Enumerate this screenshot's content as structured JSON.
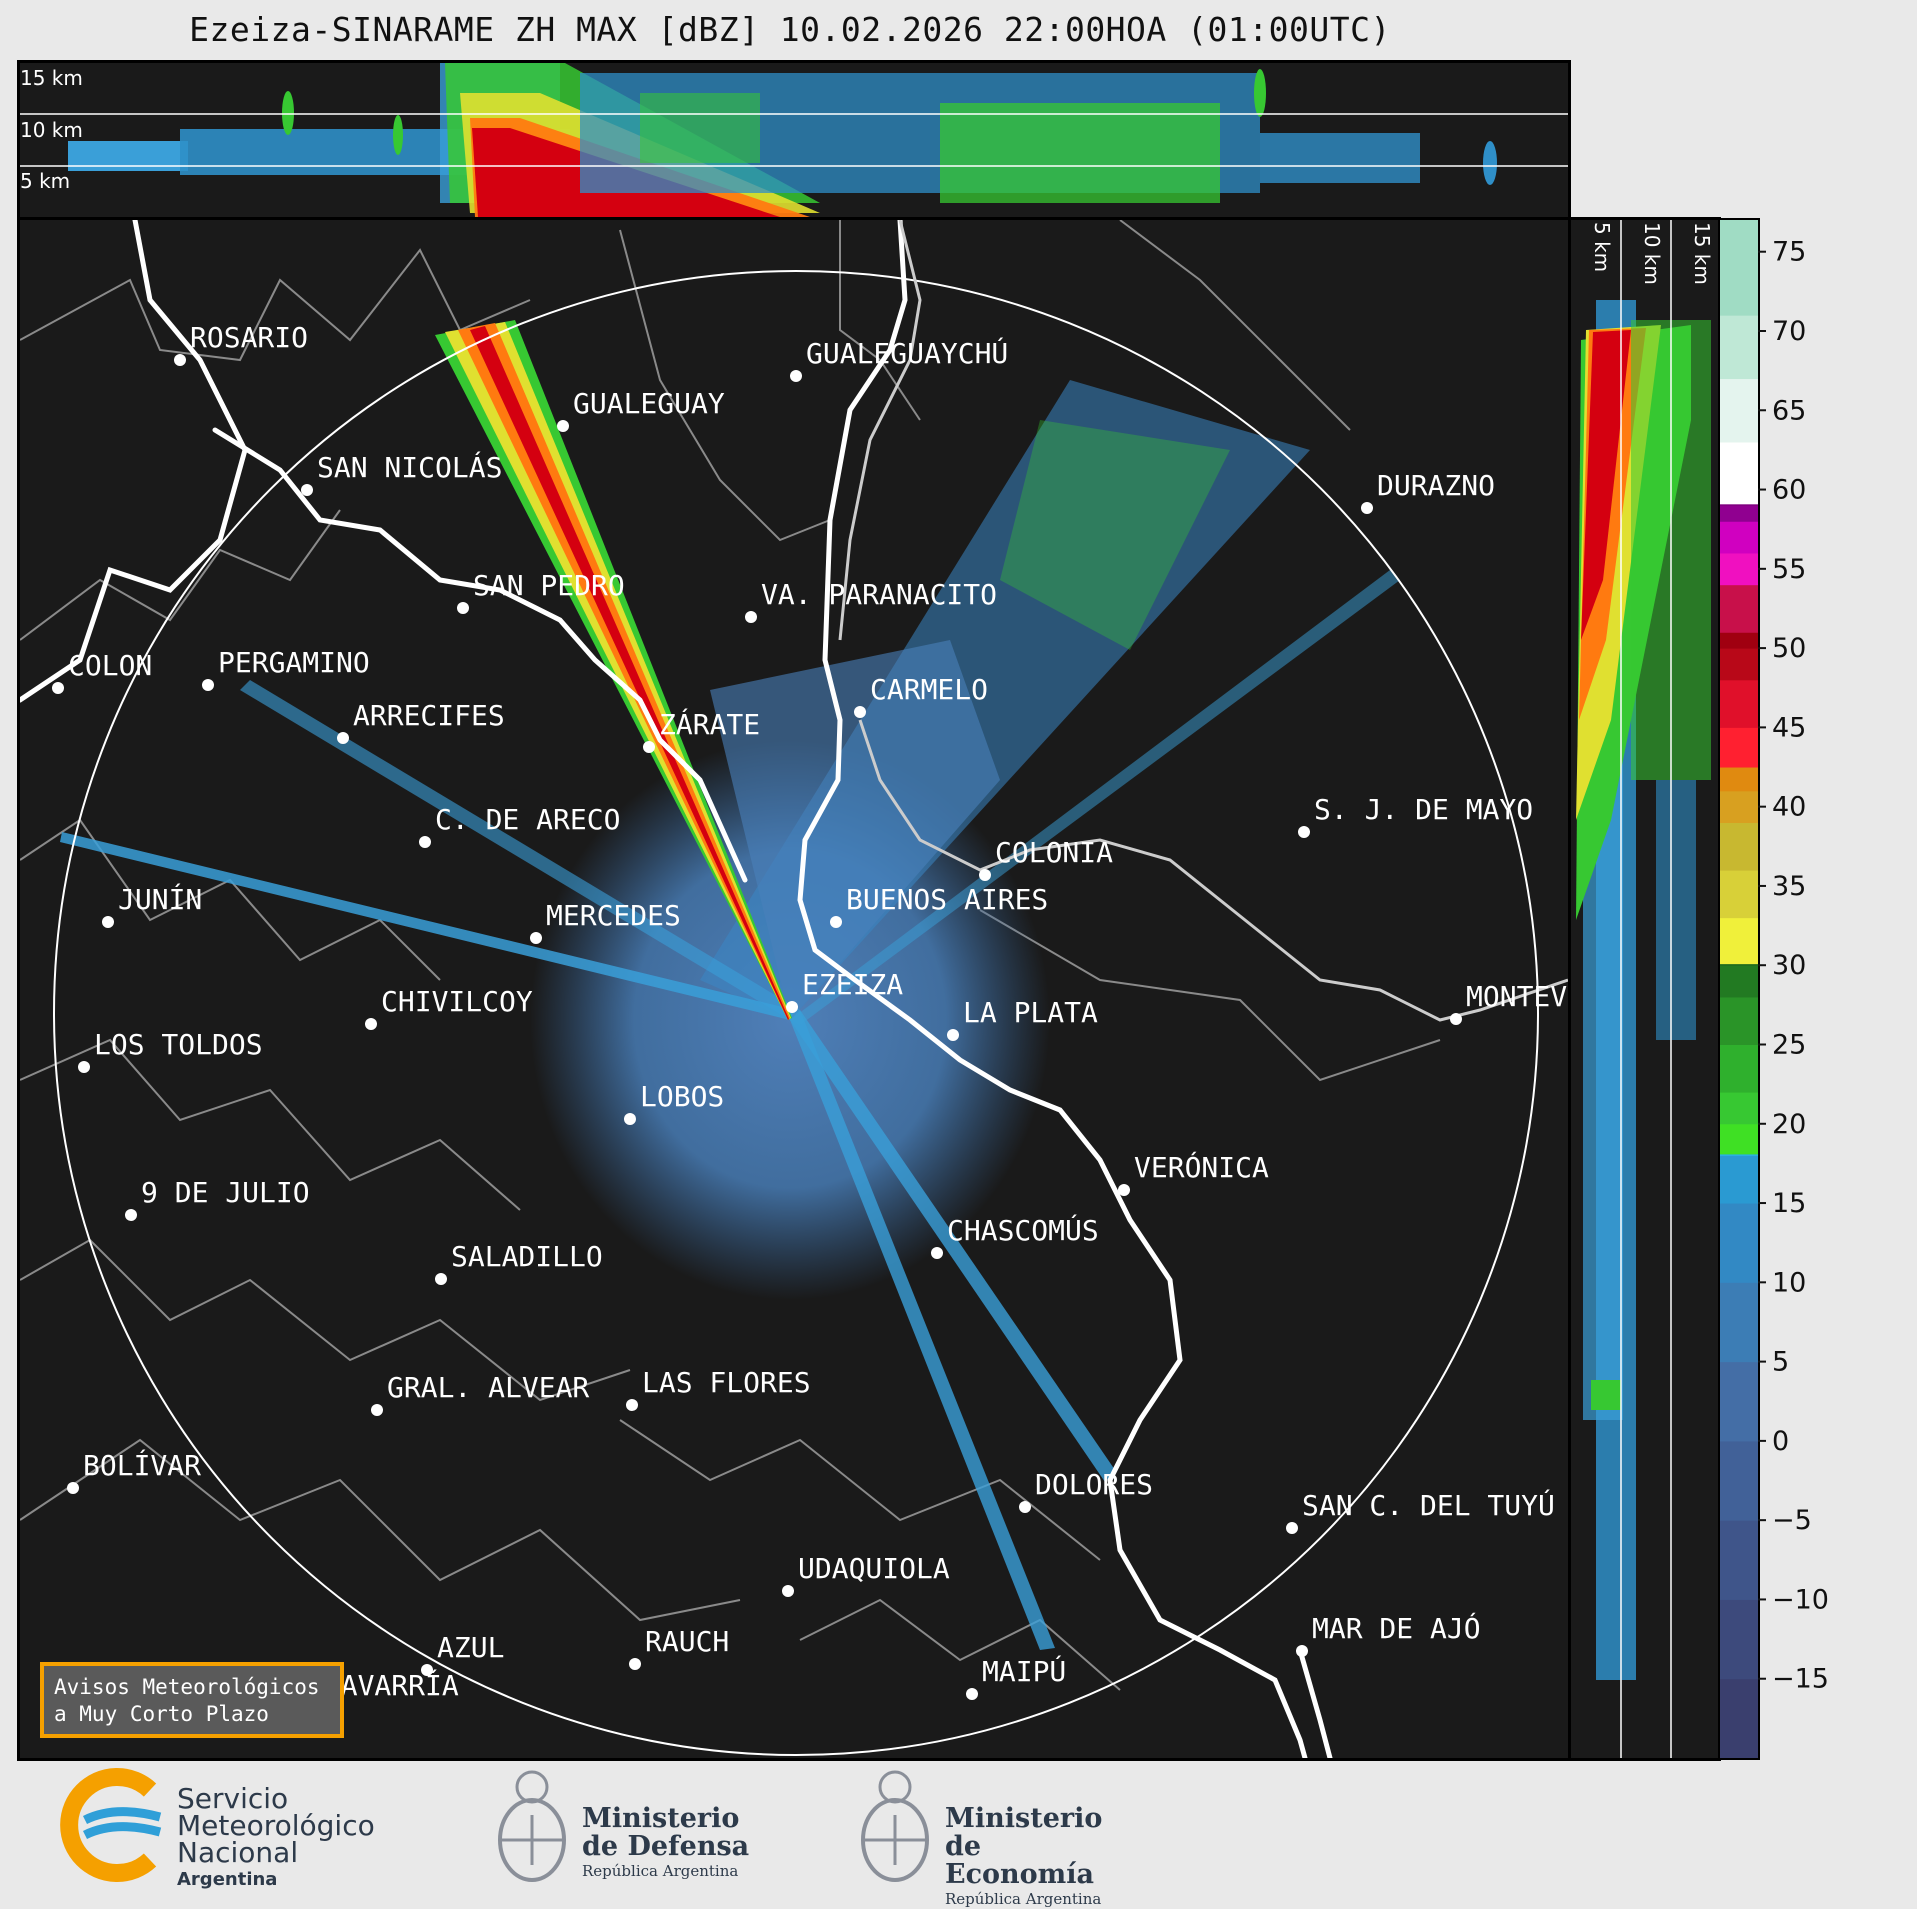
{
  "title": "Ezeiza-SINARAME ZH MAX [dBZ] 10.02.2026 22:00HOA (01:00UTC)",
  "altitude_labels": [
    "15 km",
    "10 km",
    "5 km"
  ],
  "side_altitude_labels": [
    "5 km",
    "10 km",
    "15 km"
  ],
  "colorbar": {
    "ticks": [
      "75",
      "70",
      "65",
      "60",
      "55",
      "50",
      "45",
      "40",
      "35",
      "30",
      "25",
      "20",
      "15",
      "10",
      "5",
      "0",
      "−5",
      "−10",
      "−15"
    ],
    "range": [
      -20,
      77
    ]
  },
  "cities": [
    {
      "name": "ROSARIO"
    },
    {
      "name": "GUALEGUAYCHÚ"
    },
    {
      "name": "GUALEGUAY"
    },
    {
      "name": "SAN NICOLÁS"
    },
    {
      "name": "DURAZNO"
    },
    {
      "name": "SAN PEDRO"
    },
    {
      "name": "VA. PARANACITO"
    },
    {
      "name": "COLON"
    },
    {
      "name": "PERGAMINO"
    },
    {
      "name": "CARMELO"
    },
    {
      "name": "ARRECIFES"
    },
    {
      "name": "ZÁRATE"
    },
    {
      "name": "S. J. DE MAYO"
    },
    {
      "name": "C. DE ARECO"
    },
    {
      "name": "COLONIA"
    },
    {
      "name": "JUNÍN"
    },
    {
      "name": "BUENOS AIRES"
    },
    {
      "name": "MERCEDES"
    },
    {
      "name": "EZEIZA"
    },
    {
      "name": "MONTEVIDEO"
    },
    {
      "name": "CHIVILCOY"
    },
    {
      "name": "LA PLATA"
    },
    {
      "name": "LOS TOLDOS"
    },
    {
      "name": "LOBOS"
    },
    {
      "name": "VERÓNICA"
    },
    {
      "name": "9 DE JULIO"
    },
    {
      "name": "CHASCOMÚS"
    },
    {
      "name": "SALADILLO"
    },
    {
      "name": "GRAL. ALVEAR"
    },
    {
      "name": "LAS FLORES"
    },
    {
      "name": "BOLÍVAR"
    },
    {
      "name": "DOLORES"
    },
    {
      "name": "SAN C. DEL TUYÚ"
    },
    {
      "name": "UDAQUIOLA"
    },
    {
      "name": "MAR DE AJÓ"
    },
    {
      "name": "AZUL"
    },
    {
      "name": "RAUCH"
    },
    {
      "name": "OLAVARRÍA"
    },
    {
      "name": "MAIPÚ"
    }
  ],
  "notice": {
    "line1": "Avisos Meteorológicos",
    "line2": "a Muy Corto Plazo"
  },
  "logos": {
    "smn": {
      "line1": "Servicio",
      "line2": "Meteorológico",
      "line3": "Nacional",
      "line4": "Argentina"
    },
    "defensa": {
      "line1": "Ministerio",
      "line2": "de Defensa",
      "line3": "República Argentina"
    },
    "economia": {
      "line1": "Ministerio",
      "line2": "de Economía",
      "line3": "República Argentina"
    }
  },
  "colors": {
    "background": "#1a1a1a",
    "coast": "#ffffff",
    "province_borders": "#8a8a8a",
    "notice_border": "#f5a000",
    "smn_blue": "#2f9fd8",
    "smn_orange": "#f5a000"
  }
}
